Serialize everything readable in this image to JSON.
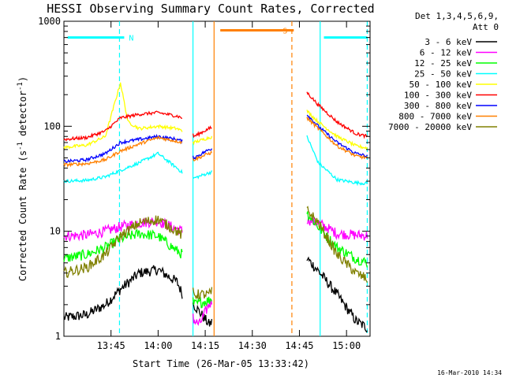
{
  "chart_data": {
    "type": "line",
    "title": "HESSI Observing Summary Count Rates, Corrected",
    "xlabel": "Start Time (26-Mar-05 13:33:42)",
    "ylabel_main": "Corrected Count Rate (s",
    "ylabel_sup1": "-1",
    "ylabel_mid": " detector",
    "ylabel_sup2": "-1",
    "ylabel_end": ")",
    "y_scale": "log",
    "ylim": [
      1,
      1000
    ],
    "xlim_minutes": [
      13.5,
      15.125
    ],
    "x_ticks": [
      {
        "t": 13.75,
        "label": "13:45"
      },
      {
        "t": 14.0,
        "label": "14:00"
      },
      {
        "t": 14.25,
        "label": "14:15"
      },
      {
        "t": 14.5,
        "label": "14:30"
      },
      {
        "t": 14.75,
        "label": "14:45"
      },
      {
        "t": 15.0,
        "label": "15:00"
      }
    ],
    "y_ticks": [
      {
        "v": 1,
        "label": "1"
      },
      {
        "v": 10,
        "label": "10"
      },
      {
        "v": 100,
        "label": "100"
      },
      {
        "v": 1000,
        "label": "1000"
      }
    ],
    "legend": {
      "placement": "right-top",
      "header_lines": [
        "Det 1,3,4,5,6,9,",
        "Att 0"
      ]
    },
    "flags": [
      {
        "label": "N",
        "color": "#00ffff",
        "start": 13.52,
        "end": 13.82,
        "level": 700
      },
      {
        "label": "S",
        "color": "#ff8000",
        "start": 14.33,
        "end": 14.72,
        "level": 820
      }
    ],
    "flag_right_bar": {
      "color": "#00ffff",
      "start": 14.88,
      "end": 15.11,
      "level": 700
    },
    "vlines": [
      {
        "t": 13.795,
        "color": "#00ffff",
        "style": "dashed"
      },
      {
        "t": 14.185,
        "color": "#00ffff",
        "style": "solid"
      },
      {
        "t": 14.297,
        "color": "#ff8000",
        "style": "solid"
      },
      {
        "t": 14.71,
        "color": "#ff8000",
        "style": "dashed"
      },
      {
        "t": 14.86,
        "color": "#00ffff",
        "style": "solid"
      },
      {
        "t": 15.11,
        "color": "#00ffff",
        "style": "dashed"
      }
    ],
    "segments": [
      {
        "start": 13.5,
        "end": 14.13
      },
      {
        "start": 14.185,
        "end": 14.285
      },
      {
        "start": 14.79,
        "end": 15.11
      }
    ],
    "series": [
      {
        "name": "3 - 6 keV",
        "color": "#000000",
        "points": [
          [
            13.5,
            1.5
          ],
          [
            13.62,
            1.6
          ],
          [
            13.72,
            2.0
          ],
          [
            13.8,
            2.8
          ],
          [
            13.9,
            4.0
          ],
          [
            14.0,
            4.3
          ],
          [
            14.1,
            3.3
          ],
          [
            14.13,
            2.5
          ],
          [
            14.19,
            2.0
          ],
          [
            14.27,
            1.3
          ],
          [
            14.79,
            5.5
          ],
          [
            14.85,
            4.2
          ],
          [
            14.95,
            2.5
          ],
          [
            15.05,
            1.4
          ],
          [
            15.11,
            1.2
          ]
        ]
      },
      {
        "name": "6 - 12 keV",
        "color": "#ff00ff",
        "points": [
          [
            13.5,
            9.0
          ],
          [
            13.62,
            9.2
          ],
          [
            13.72,
            10.0
          ],
          [
            13.8,
            11.0
          ],
          [
            13.9,
            12.0
          ],
          [
            14.0,
            12.5
          ],
          [
            14.1,
            10.5
          ],
          [
            14.13,
            10.0
          ],
          [
            14.19,
            1.4
          ],
          [
            14.22,
            1.3
          ],
          [
            14.27,
            2.0
          ],
          [
            14.79,
            13.0
          ],
          [
            14.85,
            12.0
          ],
          [
            14.95,
            9.5
          ],
          [
            15.05,
            9.2
          ],
          [
            15.11,
            9.1
          ]
        ]
      },
      {
        "name": "12 - 25 keV",
        "color": "#00ff00",
        "points": [
          [
            13.5,
            5.5
          ],
          [
            13.62,
            6.0
          ],
          [
            13.72,
            7.0
          ],
          [
            13.8,
            8.5
          ],
          [
            13.9,
            9.5
          ],
          [
            14.0,
            9.0
          ],
          [
            14.1,
            6.5
          ],
          [
            14.13,
            6.0
          ],
          [
            14.19,
            2.0
          ],
          [
            14.27,
            2.2
          ],
          [
            14.79,
            15.0
          ],
          [
            14.85,
            11.0
          ],
          [
            14.95,
            7.0
          ],
          [
            15.05,
            5.5
          ],
          [
            15.11,
            5.0
          ]
        ]
      },
      {
        "name": "25 - 50 keV",
        "color": "#00ffff",
        "points": [
          [
            13.5,
            30.0
          ],
          [
            13.62,
            30.5
          ],
          [
            13.72,
            33.0
          ],
          [
            13.8,
            38.0
          ],
          [
            13.9,
            45.0
          ],
          [
            14.0,
            55.0
          ],
          [
            14.1,
            40.0
          ],
          [
            14.13,
            36.0
          ],
          [
            14.19,
            32.0
          ],
          [
            14.27,
            36.0
          ],
          [
            14.79,
            80.0
          ],
          [
            14.85,
            45.0
          ],
          [
            14.95,
            31.0
          ],
          [
            15.05,
            29.0
          ],
          [
            15.11,
            28.5
          ]
        ]
      },
      {
        "name": "50 - 100 keV",
        "color": "#ffff00",
        "points": [
          [
            13.5,
            63.0
          ],
          [
            13.62,
            66.0
          ],
          [
            13.72,
            80.0
          ],
          [
            13.8,
            260.0
          ],
          [
            13.84,
            110.0
          ],
          [
            13.9,
            95.0
          ],
          [
            14.0,
            100.0
          ],
          [
            14.1,
            95.0
          ],
          [
            14.13,
            90.0
          ],
          [
            14.19,
            70.0
          ],
          [
            14.27,
            78.0
          ],
          [
            14.79,
            140.0
          ],
          [
            14.85,
            110.0
          ],
          [
            14.95,
            80.0
          ],
          [
            15.05,
            65.0
          ],
          [
            15.11,
            62.0
          ]
        ]
      },
      {
        "name": "100 - 300 keV",
        "color": "#ff0000",
        "points": [
          [
            13.5,
            75.0
          ],
          [
            13.62,
            78.0
          ],
          [
            13.72,
            90.0
          ],
          [
            13.8,
            120.0
          ],
          [
            13.9,
            130.0
          ],
          [
            14.0,
            135.0
          ],
          [
            14.1,
            125.0
          ],
          [
            14.13,
            120.0
          ],
          [
            14.19,
            80.0
          ],
          [
            14.27,
            95.0
          ],
          [
            14.79,
            210.0
          ],
          [
            14.85,
            160.0
          ],
          [
            14.95,
            110.0
          ],
          [
            15.05,
            85.0
          ],
          [
            15.11,
            80.0
          ]
        ]
      },
      {
        "name": "300 - 800 keV",
        "color": "#0000ff",
        "points": [
          [
            13.5,
            46.0
          ],
          [
            13.62,
            48.0
          ],
          [
            13.72,
            55.0
          ],
          [
            13.8,
            70.0
          ],
          [
            13.9,
            75.0
          ],
          [
            14.0,
            80.0
          ],
          [
            14.1,
            75.0
          ],
          [
            14.13,
            72.0
          ],
          [
            14.19,
            50.0
          ],
          [
            14.27,
            60.0
          ],
          [
            14.79,
            130.0
          ],
          [
            14.85,
            100.0
          ],
          [
            14.95,
            70.0
          ],
          [
            15.05,
            55.0
          ],
          [
            15.11,
            52.0
          ]
        ]
      },
      {
        "name": "800 - 7000 keV",
        "color": "#ff8000",
        "points": [
          [
            13.5,
            43.0
          ],
          [
            13.62,
            44.0
          ],
          [
            13.72,
            48.0
          ],
          [
            13.8,
            58.0
          ],
          [
            13.9,
            68.0
          ],
          [
            14.0,
            78.0
          ],
          [
            14.1,
            72.0
          ],
          [
            14.13,
            70.0
          ],
          [
            14.19,
            48.0
          ],
          [
            14.27,
            55.0
          ],
          [
            14.79,
            120.0
          ],
          [
            14.85,
            95.0
          ],
          [
            14.95,
            65.0
          ],
          [
            15.05,
            52.0
          ],
          [
            15.11,
            50.0
          ]
        ]
      },
      {
        "name": "7000 - 20000 keV",
        "color": "#808000",
        "points": [
          [
            13.5,
            4.0
          ],
          [
            13.62,
            4.5
          ],
          [
            13.72,
            6.0
          ],
          [
            13.8,
            9.0
          ],
          [
            13.9,
            12.0
          ],
          [
            14.0,
            13.0
          ],
          [
            14.1,
            10.0
          ],
          [
            14.13,
            9.0
          ],
          [
            14.19,
            2.5
          ],
          [
            14.27,
            2.5
          ],
          [
            14.79,
            16.0
          ],
          [
            14.85,
            12.0
          ],
          [
            14.95,
            6.0
          ],
          [
            15.05,
            4.0
          ],
          [
            15.11,
            3.5
          ]
        ]
      }
    ],
    "footer_stamp": "16-Mar-2010 14:34"
  }
}
